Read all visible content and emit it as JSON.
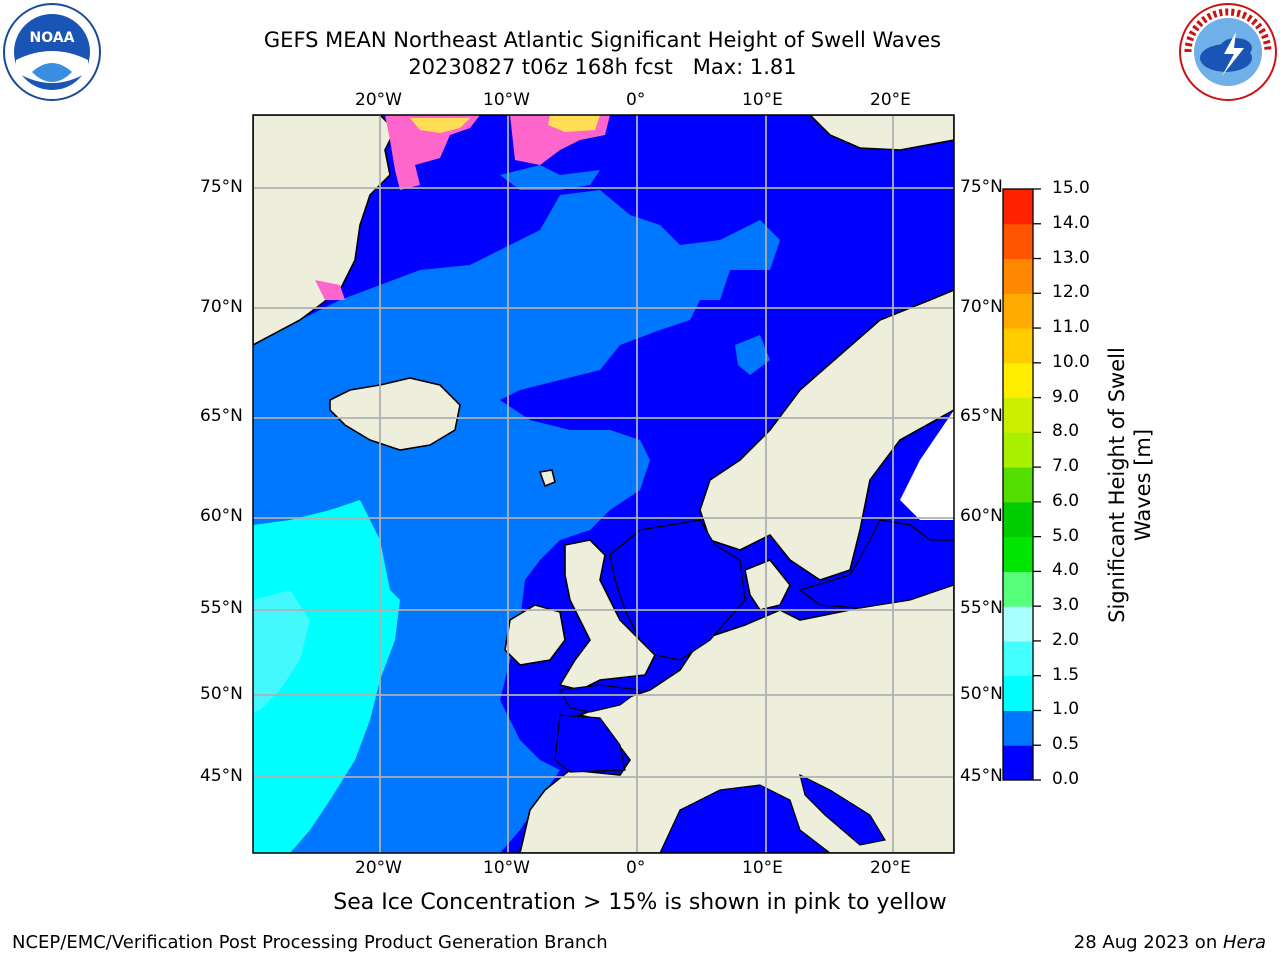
{
  "title": {
    "line1": "GEFS MEAN Northeast Atlantic Significant Height of Swell Waves",
    "line2": "20230827 t06z 168h fcst   Max: 1.81"
  },
  "map": {
    "lon_labels": [
      "20°W",
      "10°W",
      "0°",
      "10°E",
      "20°E"
    ],
    "lat_labels": [
      "75°N",
      "70°N",
      "65°N",
      "60°N",
      "55°N",
      "50°N",
      "45°N"
    ],
    "colors": {
      "land": "#eeeedc",
      "swell_0_0p5": "#0000ff",
      "swell_0p5_1": "#0077ff",
      "swell_1_1p5": "#00ffff",
      "swell_1p5_2": "#44f8ff",
      "ice": "#ff66cc",
      "ice_high": "#ffdd55",
      "grid": "#b0b0b0"
    }
  },
  "colorbar": {
    "label": "Significant Height of Swell Waves [m]",
    "ticks": [
      "15.0",
      "14.0",
      "13.0",
      "12.0",
      "11.0",
      "10.0",
      "9.0",
      "8.0",
      "7.0",
      "6.0",
      "5.0",
      "4.0",
      "3.0",
      "2.0",
      "1.5",
      "1.0",
      "0.5",
      "0.0"
    ],
    "colors": [
      "#0000ff",
      "#0077ff",
      "#00ffff",
      "#44ffff",
      "#aaffff",
      "#55ff77",
      "#00e600",
      "#00cc00",
      "#55dd00",
      "#aaee00",
      "#ccee00",
      "#ffee00",
      "#ffcc00",
      "#ffaa00",
      "#ff8800",
      "#ff5500",
      "#ff2200"
    ]
  },
  "subcaption": "Sea Ice Concentration > 15% is shown in pink to yellow",
  "footer": {
    "left": "NCEP/EMC/Verification Post Processing Product Generation Branch",
    "right_date": "28 Aug 2023 on ",
    "right_host": "Hera"
  },
  "logos": {
    "noaa_text": "NOAA"
  }
}
